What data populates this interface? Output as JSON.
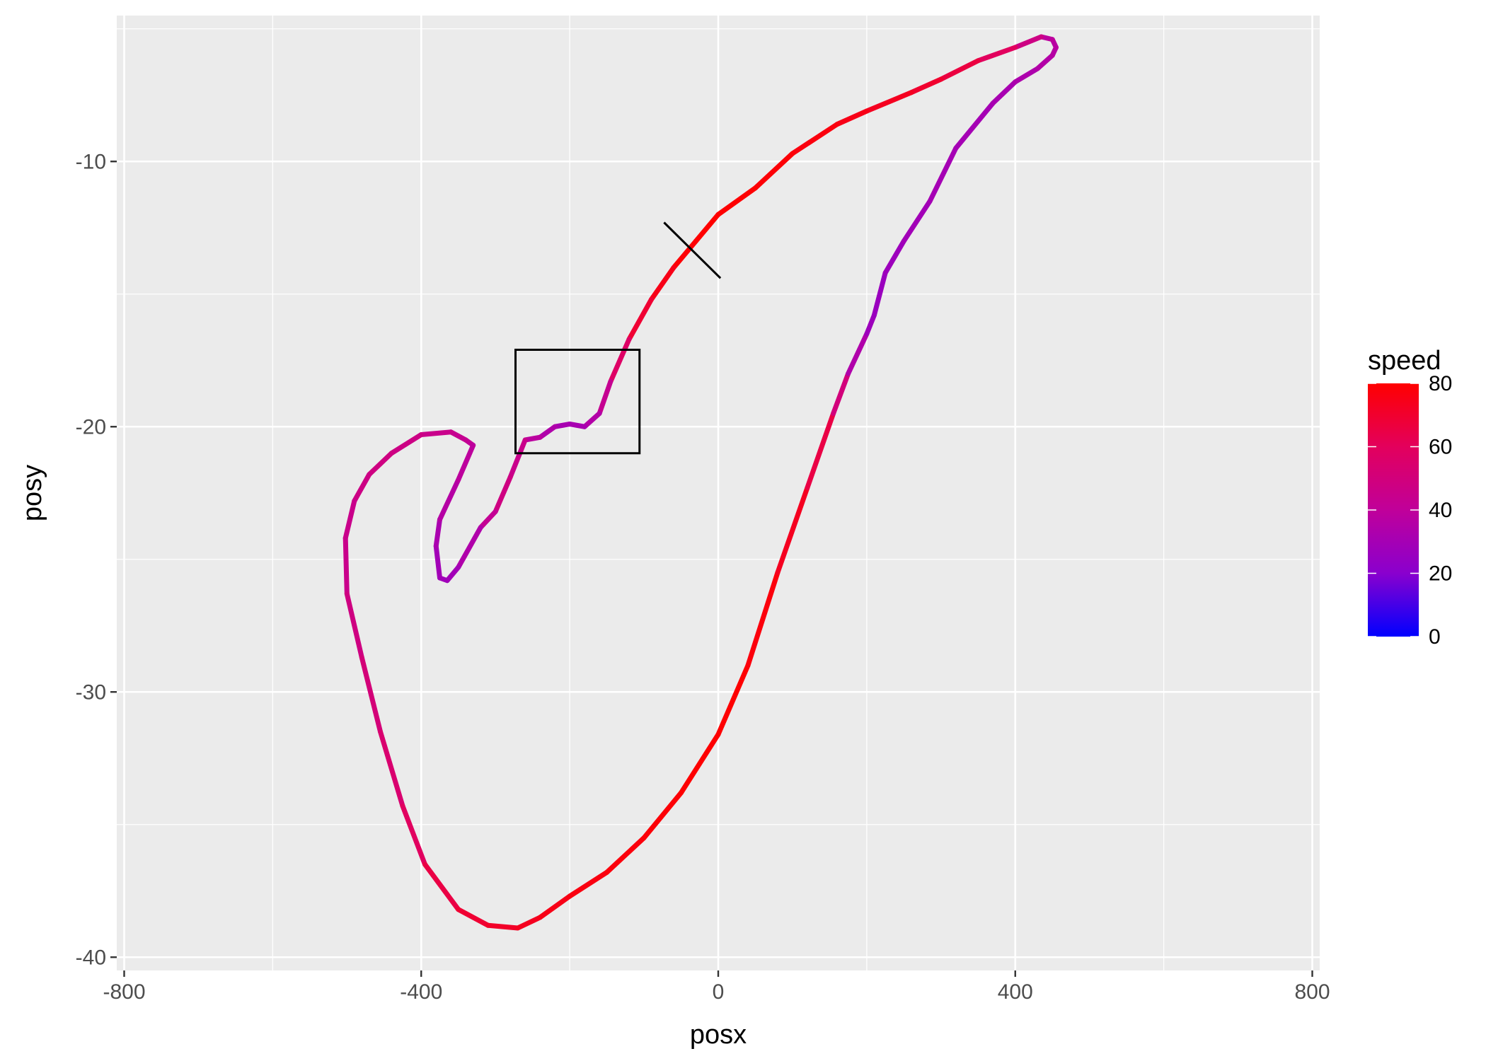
{
  "chart_data": {
    "type": "scatter",
    "title": "",
    "xlabel": "posx",
    "ylabel": "posy",
    "xlim": [
      -810,
      810
    ],
    "ylim": [
      -40.5,
      -4.5
    ],
    "x_ticks": [
      -800,
      -400,
      0,
      400,
      800
    ],
    "x_tick_labels": [
      "-800",
      "-400",
      "0",
      "400",
      "800"
    ],
    "y_ticks": [
      -10,
      -20,
      -30,
      -40
    ],
    "y_tick_labels": [
      "-10",
      "-20",
      "-30",
      "-40"
    ],
    "grid": true,
    "background": "#ebebeb",
    "color_scale": {
      "name": "speed",
      "min": 0,
      "max": 80,
      "low_color": "#0000ff",
      "high_color": "#ff0000",
      "breaks": [
        80,
        60,
        40,
        20,
        0
      ],
      "break_labels": [
        "80",
        "60",
        "40",
        "20",
        "0"
      ],
      "legend_position": "right"
    },
    "path": [
      {
        "x": -330,
        "y": -20.7,
        "speed": 40
      },
      {
        "x": -340,
        "y": -20.5,
        "speed": 42
      },
      {
        "x": -360,
        "y": -20.2,
        "speed": 44
      },
      {
        "x": -400,
        "y": -20.3,
        "speed": 46
      },
      {
        "x": -440,
        "y": -21.0,
        "speed": 48
      },
      {
        "x": -470,
        "y": -21.8,
        "speed": 48
      },
      {
        "x": -490,
        "y": -22.8,
        "speed": 46
      },
      {
        "x": -502,
        "y": -24.2,
        "speed": 44
      },
      {
        "x": -500,
        "y": -26.3,
        "speed": 46
      },
      {
        "x": -480,
        "y": -28.7,
        "speed": 50
      },
      {
        "x": -455,
        "y": -31.5,
        "speed": 52
      },
      {
        "x": -425,
        "y": -34.3,
        "speed": 56
      },
      {
        "x": -395,
        "y": -36.5,
        "speed": 62
      },
      {
        "x": -350,
        "y": -38.2,
        "speed": 68
      },
      {
        "x": -310,
        "y": -38.8,
        "speed": 70
      },
      {
        "x": -270,
        "y": -38.9,
        "speed": 72
      },
      {
        "x": -240,
        "y": -38.5,
        "speed": 74
      },
      {
        "x": -200,
        "y": -37.7,
        "speed": 76
      },
      {
        "x": -150,
        "y": -36.8,
        "speed": 77
      },
      {
        "x": -100,
        "y": -35.5,
        "speed": 78
      },
      {
        "x": -50,
        "y": -33.8,
        "speed": 79
      },
      {
        "x": 0,
        "y": -31.6,
        "speed": 80
      },
      {
        "x": 40,
        "y": -29.0,
        "speed": 79
      },
      {
        "x": 80,
        "y": -25.5,
        "speed": 76
      },
      {
        "x": 120,
        "y": -22.3,
        "speed": 70
      },
      {
        "x": 155,
        "y": -19.5,
        "speed": 60
      },
      {
        "x": 175,
        "y": -18.0,
        "speed": 40
      },
      {
        "x": 200,
        "y": -16.5,
        "speed": 28
      },
      {
        "x": 210,
        "y": -15.8,
        "speed": 26
      },
      {
        "x": 225,
        "y": -14.2,
        "speed": 26
      },
      {
        "x": 250,
        "y": -13.0,
        "speed": 28
      },
      {
        "x": 285,
        "y": -11.5,
        "speed": 30
      },
      {
        "x": 320,
        "y": -9.5,
        "speed": 30
      },
      {
        "x": 370,
        "y": -7.8,
        "speed": 30
      },
      {
        "x": 400,
        "y": -7.0,
        "speed": 32
      },
      {
        "x": 430,
        "y": -6.5,
        "speed": 34
      },
      {
        "x": 450,
        "y": -6.0,
        "speed": 36
      },
      {
        "x": 455,
        "y": -5.7,
        "speed": 36
      },
      {
        "x": 450,
        "y": -5.4,
        "speed": 38
      },
      {
        "x": 435,
        "y": -5.3,
        "speed": 40
      },
      {
        "x": 400,
        "y": -5.7,
        "speed": 55
      },
      {
        "x": 350,
        "y": -6.2,
        "speed": 64
      },
      {
        "x": 300,
        "y": -6.9,
        "speed": 68
      },
      {
        "x": 260,
        "y": -7.4,
        "speed": 72
      },
      {
        "x": 200,
        "y": -8.1,
        "speed": 74
      },
      {
        "x": 160,
        "y": -8.6,
        "speed": 76
      },
      {
        "x": 100,
        "y": -9.7,
        "speed": 78
      },
      {
        "x": 50,
        "y": -11.0,
        "speed": 79
      },
      {
        "x": 0,
        "y": -12.0,
        "speed": 80
      },
      {
        "x": -30,
        "y": -13.0,
        "speed": 80
      },
      {
        "x": -60,
        "y": -14.0,
        "speed": 78
      },
      {
        "x": -90,
        "y": -15.2,
        "speed": 72
      },
      {
        "x": -120,
        "y": -16.7,
        "speed": 66
      },
      {
        "x": -145,
        "y": -18.3,
        "speed": 48
      },
      {
        "x": -160,
        "y": -19.5,
        "speed": 38
      },
      {
        "x": -180,
        "y": -20.0,
        "speed": 32
      },
      {
        "x": -200,
        "y": -19.9,
        "speed": 30
      },
      {
        "x": -220,
        "y": -20.0,
        "speed": 32
      },
      {
        "x": -240,
        "y": -20.4,
        "speed": 36
      },
      {
        "x": -260,
        "y": -20.5,
        "speed": 40
      },
      {
        "x": -280,
        "y": -21.9,
        "speed": 50
      },
      {
        "x": -300,
        "y": -23.2,
        "speed": 46
      },
      {
        "x": -320,
        "y": -23.8,
        "speed": 38
      },
      {
        "x": -350,
        "y": -25.3,
        "speed": 30
      },
      {
        "x": -365,
        "y": -25.8,
        "speed": 28
      },
      {
        "x": -375,
        "y": -25.7,
        "speed": 28
      },
      {
        "x": -380,
        "y": -24.5,
        "speed": 30
      },
      {
        "x": -375,
        "y": -23.5,
        "speed": 34
      },
      {
        "x": -350,
        "y": -22.0,
        "speed": 38
      },
      {
        "x": -330,
        "y": -20.7,
        "speed": 40
      }
    ],
    "annotations": [
      {
        "type": "cross",
        "x1": -73,
        "y1": -12.3,
        "x2": 3,
        "y2": -14.4,
        "x3": -73,
        "y3": -14.4,
        "x4": 3,
        "y4": -12.3
      },
      {
        "type": "rect",
        "xmin": -273,
        "xmax": -106,
        "ymin": -21.0,
        "ymax": -17.1
      }
    ]
  }
}
